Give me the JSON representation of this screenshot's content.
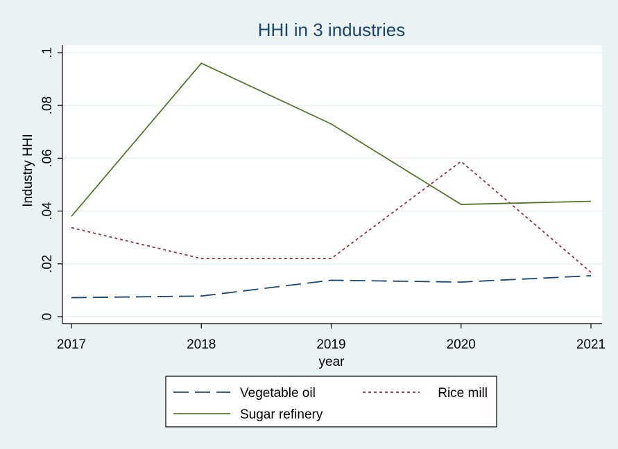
{
  "chart_data": {
    "type": "line",
    "title": "HHI in 3 industries",
    "xlabel": "year",
    "ylabel": "Industry HHI",
    "x": [
      2017,
      2018,
      2019,
      2020,
      2021
    ],
    "x_tick_labels": [
      "2017",
      "2018",
      "2019",
      "2020",
      "2021"
    ],
    "y_ticks": [
      0,
      0.02,
      0.04,
      0.06,
      0.08,
      0.1
    ],
    "y_tick_labels": [
      "0",
      ".02",
      ".04",
      ".06",
      ".08",
      ".1"
    ],
    "xlim": [
      2017,
      2021
    ],
    "ylim": [
      0,
      0.1
    ],
    "grid": true,
    "legend_position": "bottom",
    "series": [
      {
        "name": "Vegetable oil",
        "values": [
          0.0072,
          0.0078,
          0.0138,
          0.0131,
          0.0155
        ],
        "color": "#1a476f",
        "style": "dashed"
      },
      {
        "name": "Rice mill",
        "values": [
          0.0337,
          0.022,
          0.022,
          0.0588,
          0.0168
        ],
        "color": "#90353b",
        "style": "dotted"
      },
      {
        "name": "Sugar refinery",
        "values": [
          0.038,
          0.096,
          0.073,
          0.0425,
          0.0437
        ],
        "color": "#55752f",
        "style": "solid"
      }
    ]
  }
}
